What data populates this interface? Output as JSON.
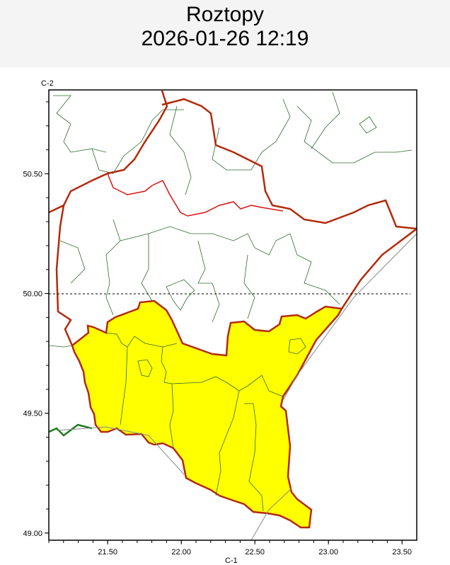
{
  "header": {
    "title": "Roztopy",
    "datetime": "2026-01-26 12:19"
  },
  "axes": {
    "y_label": "C-2",
    "x_label": "C-1",
    "x_ticks": [
      "21.50",
      "22.00",
      "22.50",
      "23.00",
      "23.50"
    ],
    "y_ticks": [
      "50.50",
      "50.00",
      "49.50",
      "49.00"
    ],
    "xlim": [
      21.1,
      23.6
    ],
    "ylim": [
      48.97,
      50.85
    ]
  },
  "colors": {
    "highlight_region": "#ffff00",
    "region_border": "#b22a0a",
    "inner_border": "#dd1111",
    "district_lines": "#2e6b2e",
    "reference_line": "#000000"
  }
}
